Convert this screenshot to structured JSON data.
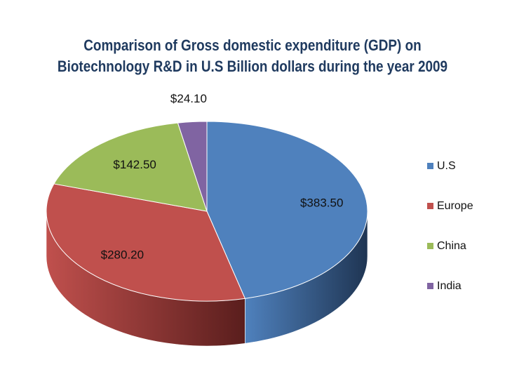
{
  "chart_data": {
    "type": "pie",
    "title_lines": [
      "Comparison of Gross domestic expenditure (GDP) on",
      "Biotechnology R&D in U.S Billion dollars during the year 2009"
    ],
    "categories": [
      "U.S",
      "Europe",
      "China",
      "India"
    ],
    "values": [
      383.5,
      280.2,
      142.5,
      24.1
    ],
    "data_labels": [
      "$383.50",
      "$280.20",
      "$142.50",
      "$24.10"
    ],
    "legend_position": "right",
    "style": "3d"
  },
  "colors": {
    "top": [
      "#4f81bd",
      "#c0504d",
      "#9bbb59",
      "#8064a2"
    ],
    "side": [
      "#1f3553",
      "#5a1e1d",
      "#4a5d26",
      "#3b2b52"
    ]
  }
}
